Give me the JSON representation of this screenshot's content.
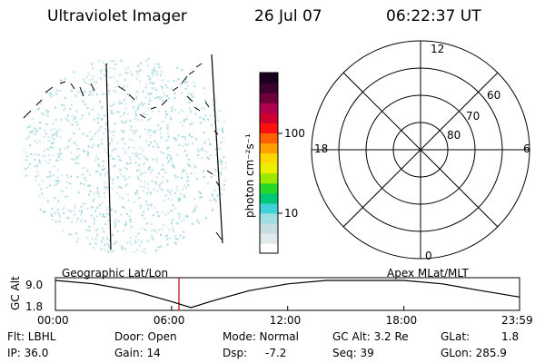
{
  "header": {
    "instrument": "Ultraviolet Imager",
    "date": "26 Jul 07",
    "time": "06:22:37 UT"
  },
  "colorbar": {
    "unit_label": "photon cm⁻²s⁻¹",
    "ticks": [
      "100",
      "10"
    ],
    "colors": [
      "#ffffff",
      "#dfe8ea",
      "#c8dde0",
      "#9edde0",
      "#40d0d8",
      "#00c878",
      "#28d828",
      "#9be800",
      "#e8f000",
      "#ffd800",
      "#ffa000",
      "#ff6000",
      "#ff1010",
      "#d00030",
      "#b00050",
      "#70003a",
      "#3c0030",
      "#18001e"
    ]
  },
  "polar": {
    "mlt_labels": {
      "top": "12",
      "bottom": "0",
      "left": "18",
      "right": "6"
    },
    "lat_labels": [
      "60",
      "70",
      "80"
    ]
  },
  "timeline": {
    "ylabel": "GC Alt",
    "y_ticks": [
      "9.0",
      "1.8"
    ],
    "left_caption": "Geographic Lat/Lon",
    "right_caption": "Apex MLat/MLT",
    "x_ticks": [
      "00:00",
      "06:00",
      "12:00",
      "18:00",
      "23:59"
    ]
  },
  "chart_data": {
    "type": "line",
    "title": "",
    "xlabel": "",
    "ylabel": "GC Alt",
    "x": [
      0,
      2,
      4,
      6,
      7,
      8,
      10,
      12,
      14,
      16,
      18,
      20,
      22,
      23.98
    ],
    "y": [
      9.0,
      8.1,
      6.3,
      3.4,
      1.8,
      3.4,
      6.3,
      8.1,
      9.0,
      9.0,
      9.0,
      8.1,
      6.3,
      4.6
    ],
    "current_time_marker": 6.38,
    "xlim": [
      0,
      23.98
    ],
    "ylim": [
      1.8,
      9.0
    ]
  },
  "status": {
    "filter": "Flt: LBHL",
    "ip": "IP: 36.0",
    "door": "Door: Open",
    "gain": "Gain: 14",
    "mode": "Mode: Normal",
    "dsp": "Dsp:",
    "dsp_value": "-7.2",
    "gc_alt": "GC Alt: 3.2 Re",
    "seq": "Seq: 39",
    "glat": "GLat:",
    "glat_value": "1.8",
    "glon": "GLon: 285.9"
  }
}
